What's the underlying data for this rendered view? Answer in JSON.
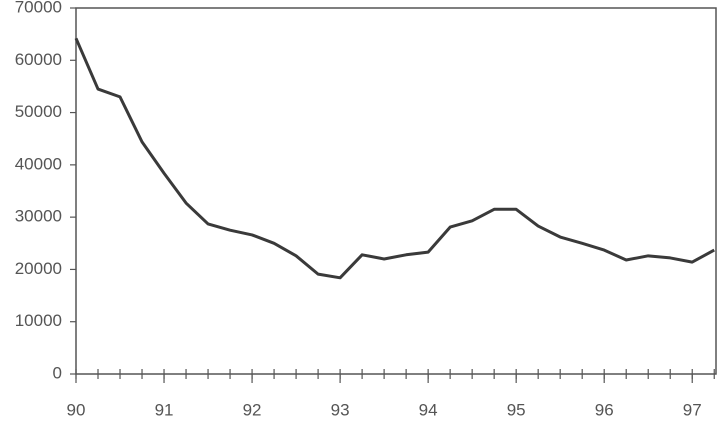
{
  "chart_data": {
    "type": "line",
    "x": [
      90,
      90.25,
      90.5,
      90.75,
      91,
      91.25,
      91.5,
      91.75,
      92,
      92.25,
      92.5,
      92.75,
      93,
      93.25,
      93.5,
      93.75,
      94,
      94.25,
      94.5,
      94.75,
      95,
      95.25,
      95.5,
      95.75,
      96,
      96.25,
      96.5,
      96.75,
      97,
      97.25
    ],
    "values": [
      64200,
      54500,
      53000,
      44400,
      38400,
      32700,
      28700,
      27500,
      26600,
      25000,
      22600,
      19100,
      18400,
      22800,
      22000,
      22800,
      23300,
      28100,
      29300,
      31500,
      31500,
      28300,
      26200,
      25000,
      23700,
      21800,
      22600,
      22200,
      21400,
      23700
    ],
    "color": "#3a3a3a",
    "xlim": [
      90,
      97.27
    ],
    "xticks": [
      90,
      91,
      92,
      93,
      94,
      95,
      96,
      97
    ],
    "ylim": [
      0,
      70000
    ],
    "yticks": [
      0,
      10000,
      20000,
      30000,
      40000,
      50000,
      60000,
      70000
    ],
    "grid": false
  }
}
